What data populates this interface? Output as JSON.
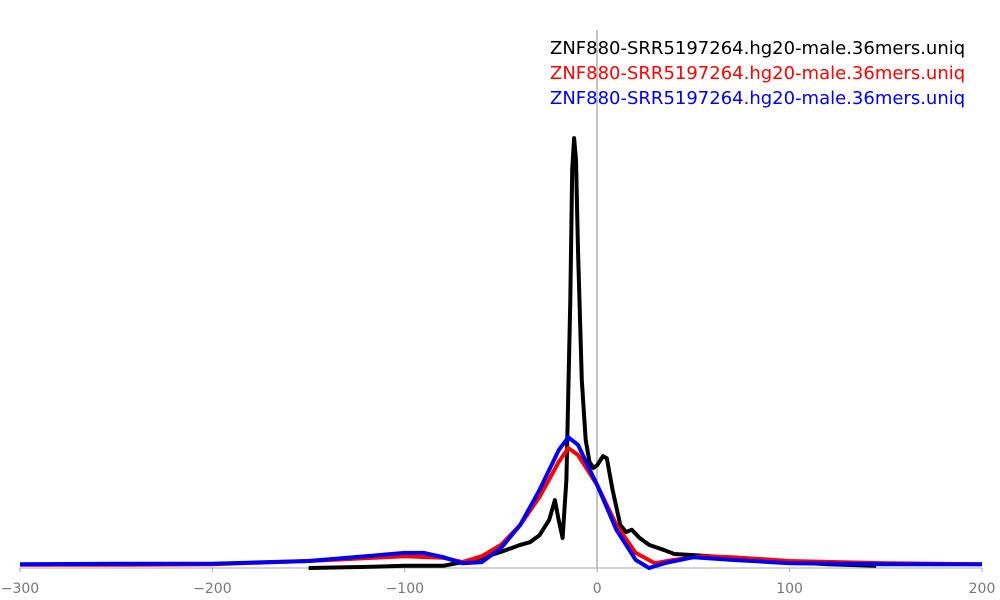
{
  "chart_data": {
    "type": "line",
    "xlim": [
      -300,
      200
    ],
    "ylim": [
      0,
      100
    ],
    "xticks": [
      {
        "value": -300,
        "label": "−300"
      },
      {
        "value": -200,
        "label": "−200"
      },
      {
        "value": -100,
        "label": "−100"
      },
      0,
      100,
      {
        "value": 200,
        "label": "200"
      }
    ],
    "series": [
      {
        "name": "ZNF880-SRR5197264.hg20-male.36mers.uniq",
        "color": "#000000",
        "x": [
          -150,
          -120,
          -100,
          -80,
          -70,
          -60,
          -50,
          -40,
          -35,
          -30,
          -25,
          -22,
          -20,
          -18,
          -16,
          -14,
          -13,
          -12,
          -11,
          -10,
          -8,
          -6,
          -4,
          -2,
          0,
          3,
          5,
          8,
          12,
          15,
          18,
          22,
          27,
          35,
          40,
          50,
          70,
          100,
          120,
          145
        ],
        "values": [
          0,
          0.2,
          0.4,
          0.4,
          1.1,
          1.9,
          3.0,
          4.3,
          4.8,
          6.1,
          8.9,
          12.6,
          8.9,
          5.6,
          16.4,
          49.8,
          74,
          79.9,
          75.8,
          59.1,
          34.9,
          23.8,
          19.7,
          18.6,
          19.1,
          20.8,
          20.4,
          14.5,
          8.0,
          6.7,
          7.1,
          5.6,
          4.3,
          3.3,
          2.6,
          2.4,
          1.9,
          1.1,
          0.7,
          0.4
        ]
      },
      {
        "name": "ZNF880-SRR5197264.hg20-male.36mers.uniq",
        "color": "#ff0000",
        "x": [
          -300,
          -250,
          -200,
          -150,
          -100,
          -80,
          -70,
          -60,
          -50,
          -40,
          -30,
          -20,
          -15,
          -10,
          -5,
          0,
          10,
          20,
          30,
          40,
          55,
          70,
          100,
          150,
          200
        ],
        "values": [
          0.6,
          0.6,
          0.7,
          1.3,
          2.2,
          1.9,
          1.1,
          2.2,
          4.3,
          8.0,
          13.2,
          19.7,
          22.3,
          21.0,
          18.2,
          15.4,
          8.0,
          2.8,
          0.9,
          1.5,
          2.2,
          2.0,
          1.3,
          0.9,
          0.7
        ]
      },
      {
        "name": "ZNF880-SRR5197264.hg20-male.36mers.uniq",
        "color": "#0000ee",
        "x": [
          -300,
          -250,
          -200,
          -150,
          -100,
          -90,
          -80,
          -70,
          -60,
          -50,
          -40,
          -30,
          -20,
          -15,
          -10,
          -5,
          0,
          10,
          20,
          27,
          35,
          50,
          70,
          100,
          150,
          200
        ],
        "values": [
          0.7,
          0.8,
          0.8,
          1.3,
          2.8,
          2.8,
          2.0,
          0.9,
          1.1,
          3.7,
          8.0,
          14.5,
          21.9,
          24.3,
          22.9,
          19.1,
          15.4,
          7.1,
          1.5,
          0,
          0.9,
          2.0,
          1.5,
          0.9,
          0.7,
          0.7
        ]
      }
    ]
  }
}
